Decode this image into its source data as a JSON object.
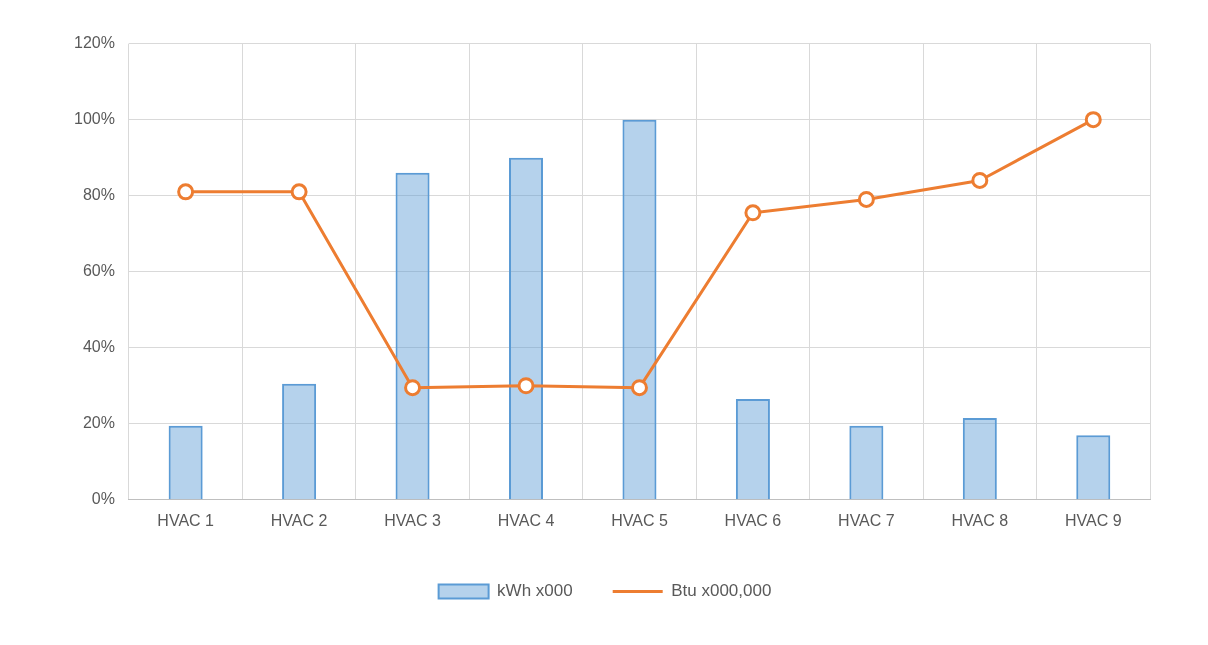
{
  "chart_data": {
    "type": "bar",
    "categories": [
      "HVAC 1",
      "HVAC 2",
      "HVAC 3",
      "HVAC 4",
      "HVAC 5",
      "HVAC 6",
      "HVAC 7",
      "HVAC 8",
      "HVAC 9"
    ],
    "series": [
      {
        "name": "kWh x000",
        "color": "#5b9bd5",
        "values": [
          19.5,
          30.5,
          86,
          90,
          100,
          26.5,
          19.5,
          21.5,
          17
        ]
      },
      {
        "name": "Btu x000,000",
        "type": "line",
        "color": "#ed7d31",
        "values": [
          81,
          81,
          29.5,
          30,
          29.5,
          75.5,
          79,
          84,
          100
        ]
      }
    ],
    "ylim": [
      0,
      120
    ],
    "yticks": [
      {
        "value": 0,
        "label": "0%"
      },
      {
        "value": 20,
        "label": "20%"
      },
      {
        "value": 40,
        "label": "40%"
      },
      {
        "value": 60,
        "label": "60%"
      },
      {
        "value": 80,
        "label": "80%"
      },
      {
        "value": 100,
        "label": "100%"
      },
      {
        "value": 120,
        "label": "120%"
      }
    ],
    "grid": true,
    "legend": "bottom",
    "marker": "circle"
  }
}
